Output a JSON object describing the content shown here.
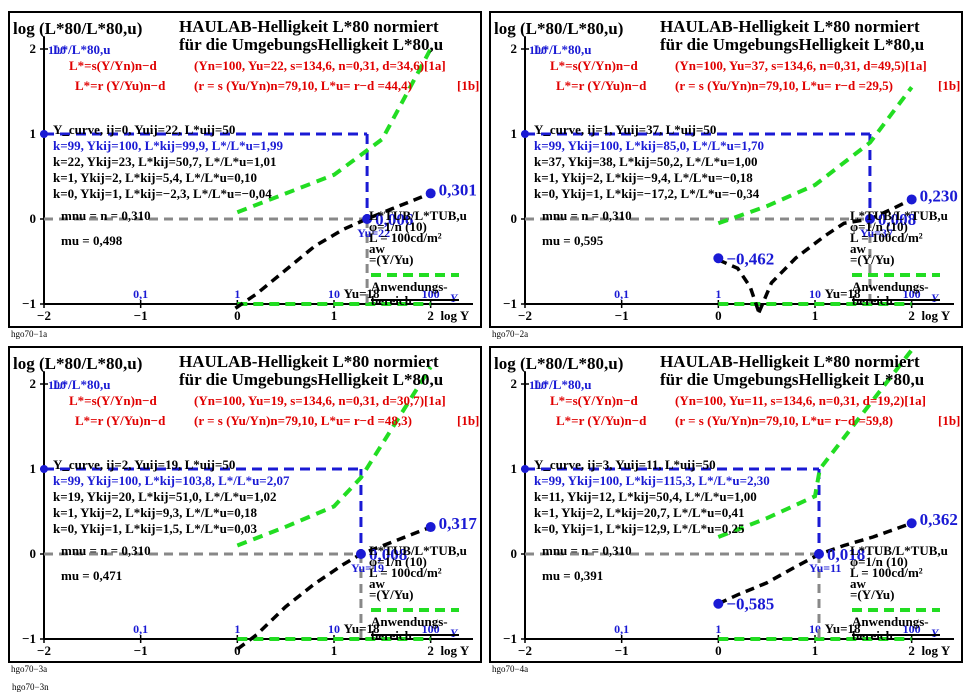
{
  "chart_data": [
    {
      "type": "line",
      "id": "hgo70-1a",
      "ylabel": "log (L*80/L*80,u)",
      "title_line1": "HAULAB-Helligkeit L*80 normiert",
      "title_line2": "für die UmgebungsHelligkeit L*80,u",
      "ratio_label": "L*/L*80,u",
      "formula_s": "L*=s(Y/Yn)n−d",
      "formula_r": "L*=r (Y/Yu)n−d",
      "params_s": "(Yn=100, Yu=22, s=134,6, n=0,31, d=34,6)[1a]",
      "params_r": "(r = s (Yu/Yn)n=79,10, L*u= r−d =44,4)",
      "ref_r": "[1b]",
      "curve_heading": "Y_curve, ij=0, Yuij=22, L*uij=50",
      "rows": [
        "k=99, Ykij=100, L*kij=99,9, L*/L*u=1,99",
        "k=22, Ykij=23, L*kij=50,7, L*/L*u=1,01",
        "k=1, Ykij=2, L*kij=5,4, L*/L*u=0,10",
        "k=0, Ykij=1, L*kij=−2,3, L*/L*u=−0,04"
      ],
      "mnu": "mnu = n = 0,310",
      "mu": "mu = 0,498",
      "big_top": "0,301",
      "big_mid": "0,006",
      "yu_label": "Yu=22",
      "yu_axis": "Yu=18",
      "legend_lines": [
        "L*TUB/L*TUB,u",
        "φ=1/n (10)",
        "L = 100cd/m²",
        "aw",
        "=(Y/Yu)"
      ],
      "anw1": "Anwendungs-",
      "anw2": "bereich",
      "x_data_ticks": [
        "0,1",
        "1",
        "10",
        "100"
      ],
      "x_axis_label": "log Y",
      "x_data_name": "Y",
      "footer": "hgo70−1a",
      "yu": 22,
      "big_top_value": 0.301,
      "big_mid_value": 0.006,
      "mu_value": 0.498,
      "green_upper": {
        "x": [
          0.0,
          0.5,
          1.0,
          1.5,
          2.0
        ],
        "y": [
          0.08,
          0.3,
          0.52,
          0.94,
          2.0
        ]
      },
      "dark_curve": {
        "x": [
          -0.02,
          0.2,
          0.5,
          0.8,
          1.1,
          1.34,
          1.6,
          2.0
        ],
        "y": [
          -1.05,
          -0.88,
          -0.6,
          -0.32,
          -0.12,
          0.0,
          0.12,
          0.301
        ]
      },
      "blue_end": {
        "x": 2.0,
        "y": 0.301
      }
    },
    {
      "type": "line",
      "id": "hgo70-2a",
      "ylabel": "log (L*80/L*80,u)",
      "title_line1": "HAULAB-Helligkeit L*80 normiert",
      "title_line2": "für die UmgebungsHelligkeit L*80,u",
      "ratio_label": "L*/L*80,u",
      "formula_s": "L*=s(Y/Yn)n−d",
      "formula_r": "L*=r (Y/Yu)n−d",
      "params_s": "(Yn=100, Yu=37, s=134,6, n=0,31, d=49,5)[1a]",
      "params_r": "(r = s (Yu/Yn)n=79,10, L*u= r−d =29,5)",
      "ref_r": "[1b]",
      "curve_heading": "Y_curve, ij=1, Yuij=37, L*uij=50",
      "rows": [
        "k=99, Ykij=100, L*kij=85,0, L*/L*u=1,70",
        "k=37, Ykij=38, L*kij=50,2, L*/L*u=1,00",
        "k=1, Ykij=2, L*kij=−9,4, L*/L*u=−0,18",
        "k=0, Ykij=1, L*kij=−17,2, L*/L*u=−0,34"
      ],
      "mnu": "mnu = n = 0,310",
      "mu": "mu = 0,595",
      "big_top": "0,230",
      "big_mid": "0,008",
      "big_low": "−0,462",
      "yu_label": "Yu=37",
      "yu_axis": "Yu=18",
      "legend_lines": [
        "L*TUB/L*TUB,u",
        "φ=1/n (10)",
        "L = 100cd/m²",
        "aw",
        "=(Y/Yu)"
      ],
      "anw1": "Anwendungs-",
      "anw2": "bereich",
      "x_data_ticks": [
        "0,1",
        "1",
        "10",
        "100"
      ],
      "x_axis_label": "log Y",
      "x_data_name": "Y",
      "footer": "hgo70−2a",
      "yu": 37,
      "big_top_value": 0.23,
      "big_mid_value": 0.008,
      "mu_value": 0.595,
      "green_upper": {
        "x": [
          0.0,
          0.5,
          1.0,
          1.57,
          2.0
        ],
        "y": [
          -0.05,
          0.15,
          0.4,
          0.9,
          1.55
        ]
      },
      "dark_curve": {
        "x": [
          0.42,
          0.55,
          0.8,
          1.1,
          1.3,
          1.57,
          1.8,
          2.0
        ],
        "y": [
          -1.1,
          -0.75,
          -0.46,
          -0.2,
          -0.05,
          0.0,
          0.12,
          0.23
        ]
      },
      "dark_left": {
        "x": [
          0.0,
          0.2,
          0.33,
          0.42
        ],
        "y": [
          -0.48,
          -0.58,
          -0.8,
          -1.1
        ]
      },
      "blue_end": {
        "x": 2.0,
        "y": 0.23
      },
      "blue_low": {
        "x": 0.0,
        "y": -0.462
      }
    },
    {
      "type": "line",
      "id": "hgo70-3a",
      "ylabel": "log (L*80/L*80,u)",
      "title_line1": "HAULAB-Helligkeit L*80 normiert",
      "title_line2": "für die UmgebungsHelligkeit L*80,u",
      "ratio_label": "L*/L*80,u",
      "formula_s": "L*=s(Y/Yn)n−d",
      "formula_r": "L*=r (Y/Yu)n−d",
      "params_s": "(Yn=100, Yu=19, s=134,6, n=0,31, d=30,7)[1a]",
      "params_r": "(r = s (Yu/Yn)n=79,10, L*u= r−d =48,3)",
      "ref_r": "[1b]",
      "curve_heading": "Y_curve, ij=2, Yuij=19, L*uij=50",
      "rows": [
        "k=99, Ykij=100, L*kij=103,8, L*/L*u=2,07",
        "k=19, Ykij=20, L*kij=51,0, L*/L*u=1,02",
        "k=1, Ykij=2, L*kij=9,3, L*/L*u=0,18",
        "k=0, Ykij=1, L*kij=1,5, L*/L*u=0,03"
      ],
      "mnu": "mnu = n = 0,310",
      "mu": "mu = 0,471",
      "big_top": "0,317",
      "big_mid": "0,008",
      "yu_label": "Yu=19",
      "yu_axis": "Yu=18",
      "legend_lines": [
        "L*TUB/L*TUB,u",
        "φ=1/n (10)",
        "L = 100cd/m²",
        "aw",
        "=(Y/Yu)"
      ],
      "anw1": "Anwendungs-",
      "anw2": "bereich",
      "x_data_ticks": [
        "0,1",
        "1",
        "10",
        "100"
      ],
      "x_axis_label": "log Y",
      "x_data_name": "Y",
      "footer": "hgo70−3a",
      "yu": 19,
      "big_top_value": 0.317,
      "big_mid_value": 0.008,
      "mu_value": 0.471,
      "green_upper": {
        "x": [
          0.0,
          0.5,
          1.0,
          1.28,
          2.0
        ],
        "y": [
          0.1,
          0.32,
          0.56,
          0.9,
          2.2
        ]
      },
      "dark_curve": {
        "x": [
          0.0,
          0.2,
          0.5,
          0.8,
          1.1,
          1.28,
          1.6,
          2.0
        ],
        "y": [
          -1.3,
          -0.95,
          -0.62,
          -0.35,
          -0.12,
          0.0,
          0.14,
          0.317
        ]
      },
      "blue_end": {
        "x": 2.0,
        "y": 0.317
      }
    },
    {
      "type": "line",
      "id": "hgo70-4a",
      "ylabel": "log (L*80/L*80,u)",
      "title_line1": "HAULAB-Helligkeit L*80 normiert",
      "title_line2": "für die UmgebungsHelligkeit L*80,u",
      "ratio_label": "L*/L*80,u",
      "formula_s": "L*=s(Y/Yn)n−d",
      "formula_r": "L*=r (Y/Yu)n−d",
      "params_s": "(Yn=100, Yu=11, s=134,6, n=0,31, d=19,2)[1a]",
      "params_r": "(r = s (Yu/Yn)n=79,10, L*u= r−d =59,8)",
      "ref_r": "[1b]",
      "curve_heading": "Y_curve, ij=3, Yuij=11, L*uij=50",
      "rows": [
        "k=99, Ykij=100, L*kij=115,3, L*/L*u=2,30",
        "k=11, Ykij=12, L*kij=50,4, L*/L*u=1,00",
        "k=1, Ykij=2, L*kij=20,7, L*/L*u=0,41",
        "k=0, Ykij=1, L*kij=12,9, L*/L*u=0,25"
      ],
      "mnu": "mnu = n = 0,310",
      "mu": "mu = 0,391",
      "big_top": "0,362",
      "big_mid": "0,018",
      "big_low": "−0,585",
      "yu_label": "Yu=11",
      "yu_axis": "Yu=18",
      "legend_lines": [
        "L*TUB/L*TUB,u",
        "φ=1/n (10)",
        "L = 100cd/m²",
        "aw",
        "=(Y/Yu)"
      ],
      "anw1": "Anwendungs-",
      "anw2": "bereich",
      "x_data_ticks": [
        "0,1",
        "1",
        "10",
        "100"
      ],
      "x_axis_label": "log Y",
      "x_data_name": "Y",
      "footer": "hgo70−4a",
      "yu": 11,
      "big_top_value": 0.362,
      "big_mid_value": 0.018,
      "mu_value": 0.391,
      "green_upper": {
        "x": [
          0.0,
          0.5,
          1.0,
          1.05,
          2.0
        ],
        "y": [
          0.2,
          0.42,
          0.68,
          1.0,
          2.4
        ]
      },
      "dark_curve": {
        "x": [
          0.0,
          0.2,
          0.5,
          0.8,
          1.05,
          1.3,
          1.6,
          2.0
        ],
        "y": [
          -0.585,
          -0.48,
          -0.34,
          -0.15,
          0.0,
          0.1,
          0.2,
          0.362
        ]
      },
      "blue_end": {
        "x": 2.0,
        "y": 0.362
      },
      "blue_low": {
        "x": 0.0,
        "y": -0.585
      }
    }
  ],
  "footer_page": "hgo70−3n",
  "axis": {
    "x_ticks": [
      "−2",
      "−1",
      "0",
      "1",
      "2"
    ],
    "y_ticks": [
      "2",
      "1",
      "0",
      "−1"
    ],
    "y_blue_tick": "100",
    "xlim": [
      -2,
      2.5
    ],
    "ylim": [
      -1,
      2.2
    ]
  },
  "colors": {
    "blue": "#1a1ad4",
    "red": "#e00000",
    "green": "#22dd22",
    "black": "#000000",
    "gray": "#888888"
  }
}
